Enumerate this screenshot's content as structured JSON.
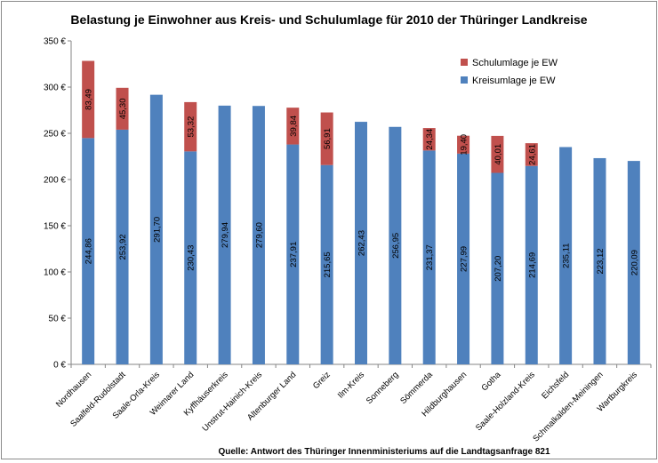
{
  "chart_data": {
    "type": "bar",
    "stacked": true,
    "title": "Belastung je Einwohner aus Kreis- und Schulumlage für 2010 der Thüringer Landkreise",
    "source": "Quelle: Antwort des Thüringer Innenministeriums auf die Landtagsanfrage  821",
    "xlabel": "",
    "ylabel": "",
    "ylim": [
      0,
      350
    ],
    "yticks": [
      0,
      50,
      100,
      150,
      200,
      250,
      300,
      350
    ],
    "ytick_labels": [
      "0 €",
      "50 €",
      "100 €",
      "150 €",
      "200 €",
      "250 €",
      "300 €",
      "350 €"
    ],
    "grid": false,
    "legend_position": "top-right",
    "categories": [
      "Nordhausen",
      "Saalfeld-Rudolstadt",
      "Saale-Orla-Kreis",
      "Weimarer Land",
      "Kyffhäuserkreis",
      "Unstrut-Hainich-Kreis",
      "Altenburger Land",
      "Greiz",
      "Ilm-Kreis",
      "Sonneberg",
      "Sömmerda",
      "Hildburghausen",
      "Gotha",
      "Saale-Holzland-Kreis",
      "Eichsfeld",
      "Schmalkalden-Meiningen",
      "Wartburgkreis"
    ],
    "series": [
      {
        "name": "Kreisumlage je EW",
        "color": "#4f81bd",
        "values": [
          244.86,
          253.92,
          291.7,
          230.43,
          279.94,
          279.6,
          237.91,
          215.65,
          262.43,
          256.95,
          231.37,
          227.99,
          207.2,
          214.69,
          235.11,
          223.12,
          220.09
        ],
        "labels": [
          "244,86",
          "253,92",
          "291,70",
          "230,43",
          "279,94",
          "279,60",
          "237,91",
          "215,65",
          "262,43",
          "256,95",
          "231,37",
          "227,99",
          "207,20",
          "214,69",
          "235,11",
          "223,12",
          "220,09"
        ]
      },
      {
        "name": "Schulumlage je EW",
        "color": "#c0504d",
        "values": [
          83.49,
          45.3,
          null,
          53.32,
          null,
          null,
          39.84,
          56.91,
          null,
          null,
          24.34,
          19.4,
          40.01,
          24.61,
          null,
          null,
          null
        ],
        "labels": [
          "83,49",
          "45,30",
          "",
          "53,32",
          "",
          "",
          "39,84",
          "56,91",
          "",
          "",
          "24,34",
          "19,40",
          "40,01",
          "24,61",
          "",
          "",
          ""
        ]
      }
    ],
    "legend_order": [
      "Schulumlage je EW",
      "Kreisumlage je EW"
    ]
  }
}
